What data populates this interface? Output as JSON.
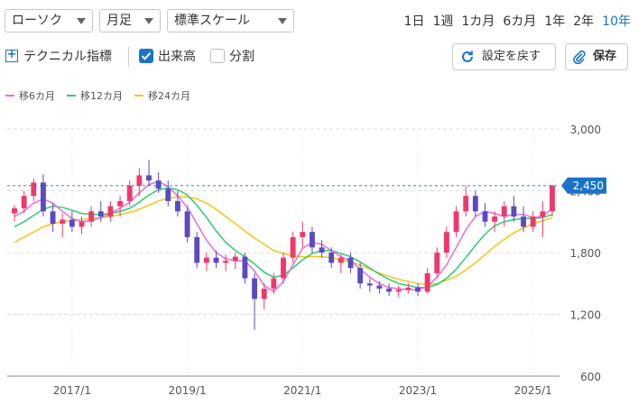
{
  "controls": {
    "chart_type": "ローソク",
    "interval": "月足",
    "scale": "標準スケール",
    "periods": [
      "1日",
      "1週",
      "1カ月",
      "6カ月",
      "1年",
      "2年",
      "10年"
    ],
    "active_period": "10年",
    "technical_label": "テクニカル指標",
    "volume_label": "出来高",
    "split_label": "分割",
    "reset_label": "設定を戻す",
    "save_label": "保存"
  },
  "colors": {
    "up": "#f0386b",
    "down": "#5a4bc2",
    "ma6": "#e86ce0",
    "ma12": "#2ecc71",
    "ma24": "#f5c518",
    "accent": "#1a73c8"
  },
  "chart_data": {
    "type": "candlestick",
    "y_ticks": [
      "3,000",
      "2,400",
      "1,800",
      "1,200",
      "600"
    ],
    "x_ticks": [
      "2017/1",
      "2019/1",
      "2021/1",
      "2023/1",
      "2025/1"
    ],
    "ylim": [
      600,
      3000
    ],
    "last_price_label": "2,450",
    "last_price": 2450,
    "legend": [
      "移6カ月",
      "移12カ月",
      "移24カ月"
    ],
    "months": [
      "2016/1",
      "2016/3",
      "2016/5",
      "2016/7",
      "2016/9",
      "2016/11",
      "2017/1",
      "2017/3",
      "2017/5",
      "2017/7",
      "2017/9",
      "2017/11",
      "2018/1",
      "2018/3",
      "2018/5",
      "2018/7",
      "2018/9",
      "2018/11",
      "2019/1",
      "2019/3",
      "2019/5",
      "2019/7",
      "2019/9",
      "2019/11",
      "2020/1",
      "2020/3",
      "2020/5",
      "2020/7",
      "2020/9",
      "2020/11",
      "2021/1",
      "2021/3",
      "2021/5",
      "2021/7",
      "2021/9",
      "2021/11",
      "2022/1",
      "2022/3",
      "2022/5",
      "2022/7",
      "2022/9",
      "2022/11",
      "2023/1",
      "2023/3",
      "2023/5",
      "2023/7",
      "2023/9",
      "2023/11",
      "2024/1",
      "2024/3",
      "2024/5",
      "2024/7",
      "2024/9",
      "2024/11",
      "2025/1",
      "2025/3",
      "2025/5"
    ],
    "ohlc": [
      [
        2180,
        2260,
        2100,
        2230
      ],
      [
        2230,
        2400,
        2180,
        2350
      ],
      [
        2350,
        2520,
        2300,
        2480
      ],
      [
        2480,
        2560,
        2150,
        2200
      ],
      [
        2200,
        2280,
        2000,
        2080
      ],
      [
        2080,
        2180,
        1950,
        2120
      ],
      [
        2120,
        2200,
        2000,
        2050
      ],
      [
        2050,
        2150,
        1980,
        2100
      ],
      [
        2100,
        2250,
        2050,
        2200
      ],
      [
        2200,
        2300,
        2100,
        2150
      ],
      [
        2150,
        2300,
        2100,
        2250
      ],
      [
        2250,
        2350,
        2150,
        2300
      ],
      [
        2300,
        2500,
        2250,
        2450
      ],
      [
        2450,
        2620,
        2350,
        2550
      ],
      [
        2550,
        2700,
        2450,
        2500
      ],
      [
        2500,
        2580,
        2380,
        2420
      ],
      [
        2420,
        2500,
        2250,
        2300
      ],
      [
        2300,
        2400,
        2150,
        2200
      ],
      [
        2200,
        2250,
        1900,
        1950
      ],
      [
        1950,
        2000,
        1650,
        1700
      ],
      [
        1700,
        1800,
        1620,
        1750
      ],
      [
        1750,
        1820,
        1650,
        1700
      ],
      [
        1700,
        1780,
        1620,
        1720
      ],
      [
        1720,
        1800,
        1640,
        1760
      ],
      [
        1760,
        1800,
        1500,
        1550
      ],
      [
        1550,
        1600,
        1050,
        1350
      ],
      [
        1350,
        1500,
        1250,
        1450
      ],
      [
        1450,
        1600,
        1400,
        1550
      ],
      [
        1550,
        1800,
        1500,
        1750
      ],
      [
        1750,
        2000,
        1700,
        1950
      ],
      [
        1950,
        2100,
        1850,
        2000
      ],
      [
        2000,
        2050,
        1800,
        1850
      ],
      [
        1850,
        1920,
        1750,
        1800
      ],
      [
        1800,
        1850,
        1650,
        1700
      ],
      [
        1700,
        1780,
        1600,
        1750
      ],
      [
        1750,
        1800,
        1600,
        1650
      ],
      [
        1650,
        1700,
        1450,
        1500
      ],
      [
        1500,
        1550,
        1420,
        1480
      ],
      [
        1480,
        1520,
        1400,
        1450
      ],
      [
        1450,
        1500,
        1380,
        1420
      ],
      [
        1420,
        1480,
        1370,
        1440
      ],
      [
        1440,
        1500,
        1400,
        1460
      ],
      [
        1460,
        1500,
        1380,
        1420
      ],
      [
        1420,
        1650,
        1400,
        1600
      ],
      [
        1600,
        1850,
        1550,
        1800
      ],
      [
        1800,
        2050,
        1750,
        2000
      ],
      [
        2000,
        2250,
        1950,
        2200
      ],
      [
        2200,
        2450,
        2150,
        2350
      ],
      [
        2350,
        2400,
        2150,
        2200
      ],
      [
        2200,
        2280,
        2050,
        2100
      ],
      [
        2100,
        2200,
        2000,
        2150
      ],
      [
        2150,
        2300,
        2050,
        2250
      ],
      [
        2250,
        2350,
        2100,
        2150
      ],
      [
        2150,
        2250,
        2000,
        2050
      ],
      [
        2050,
        2200,
        2000,
        2150
      ],
      [
        2150,
        2300,
        1950,
        2200
      ],
      [
        2200,
        2460,
        2150,
        2450
      ]
    ],
    "ma6": [
      2150,
      2200,
      2280,
      2320,
      2280,
      2200,
      2130,
      2100,
      2110,
      2140,
      2180,
      2230,
      2290,
      2380,
      2460,
      2490,
      2440,
      2350,
      2240,
      2080,
      1920,
      1800,
      1740,
      1720,
      1720,
      1620,
      1480,
      1420,
      1520,
      1680,
      1840,
      1900,
      1880,
      1820,
      1760,
      1720,
      1640,
      1560,
      1500,
      1460,
      1450,
      1440,
      1440,
      1470,
      1560,
      1680,
      1850,
      2020,
      2150,
      2200,
      2180,
      2150,
      2170,
      2170,
      2140,
      2150,
      2230
    ],
    "ma12": [
      2050,
      2100,
      2160,
      2220,
      2250,
      2240,
      2210,
      2180,
      2170,
      2170,
      2180,
      2200,
      2230,
      2290,
      2360,
      2410,
      2430,
      2410,
      2360,
      2260,
      2140,
      2010,
      1900,
      1820,
      1760,
      1690,
      1610,
      1560,
      1580,
      1650,
      1730,
      1790,
      1820,
      1820,
      1790,
      1760,
      1710,
      1650,
      1590,
      1540,
      1500,
      1480,
      1460,
      1460,
      1490,
      1550,
      1640,
      1750,
      1870,
      1980,
      2060,
      2100,
      2120,
      2130,
      2130,
      2140,
      2170
    ],
    "ma24": [
      1900,
      1950,
      2000,
      2050,
      2080,
      2100,
      2110,
      2120,
      2130,
      2140,
      2150,
      2170,
      2190,
      2220,
      2260,
      2300,
      2330,
      2340,
      2340,
      2320,
      2280,
      2220,
      2150,
      2080,
      2010,
      1940,
      1880,
      1820,
      1790,
      1770,
      1760,
      1760,
      1760,
      1750,
      1730,
      1710,
      1680,
      1640,
      1600,
      1570,
      1540,
      1520,
      1500,
      1490,
      1500,
      1530,
      1570,
      1630,
      1700,
      1780,
      1860,
      1930,
      1990,
      2040,
      2080,
      2110,
      2140
    ]
  }
}
